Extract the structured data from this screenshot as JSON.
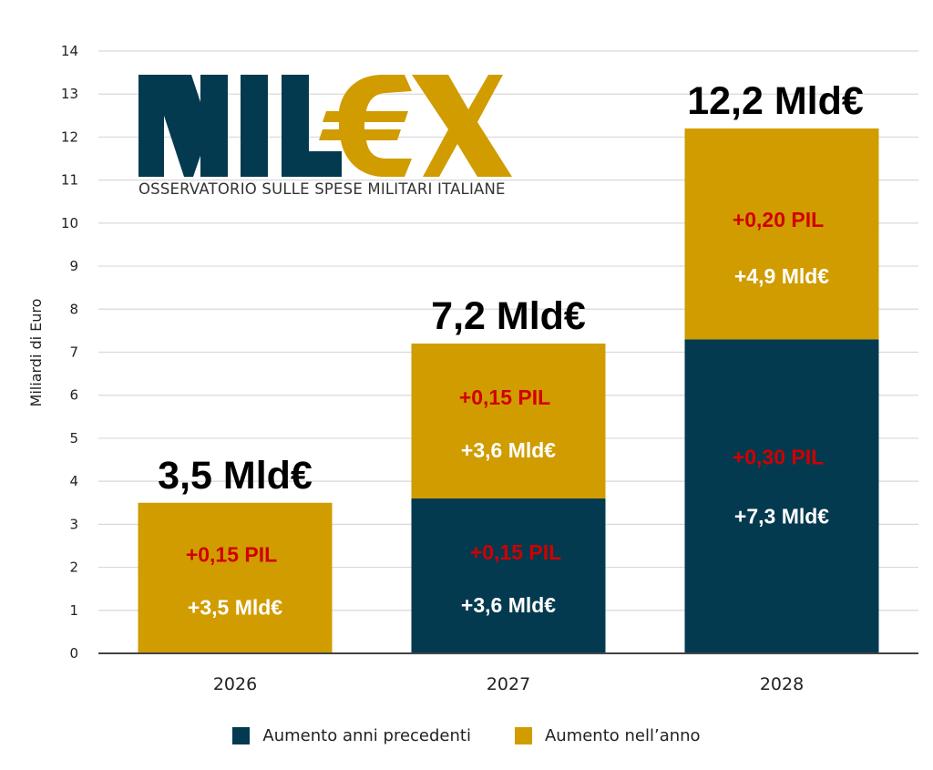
{
  "colors": {
    "previous_years": "#033a4f",
    "current_year": "#d09c00",
    "pil_text": "#d00000",
    "mld_text": "#ffffff",
    "total_text": "#000000"
  },
  "logo": {
    "word_left": "MIL",
    "word_right": "€X",
    "subtitle": "OSSERVATORIO SULLE SPESE MILITARI ITALIANE"
  },
  "chart_data": {
    "type": "bar",
    "stacked": true,
    "title": "",
    "xlabel": "",
    "ylabel": "Miliardi di Euro",
    "ylim": [
      0,
      14
    ],
    "yticks": [
      "0",
      "1",
      "2",
      "3",
      "4",
      "5",
      "6",
      "7",
      "8",
      "9",
      "10",
      "11",
      "12",
      "13",
      "14"
    ],
    "grid": true,
    "legend_position": "bottom",
    "categories": [
      "2026",
      "2027",
      "2028"
    ],
    "series": [
      {
        "name": "Aumento anni precedenti",
        "color": "#033a4f",
        "values": [
          0,
          3.6,
          7.3
        ],
        "labels": [
          null,
          {
            "pil": "+0,15 PIL",
            "mld": "+3,6 Mld€"
          },
          {
            "pil": "+0,30 PIL",
            "mld": "+7,3 Mld€"
          }
        ]
      },
      {
        "name": "Aumento nell’anno",
        "color": "#d09c00",
        "values": [
          3.5,
          3.6,
          4.9
        ],
        "labels": [
          {
            "pil": "+0,15 PIL",
            "mld": "+3,5 Mld€"
          },
          {
            "pil": "+0,15 PIL",
            "mld": "+3,6 Mld€"
          },
          {
            "pil": "+0,20 PIL",
            "mld": "+4,9 Mld€"
          }
        ]
      }
    ],
    "totals": [
      "3,5 Mld€",
      "7,2 Mld€",
      "12,2 Mld€"
    ],
    "total_values": [
      3.5,
      7.2,
      12.2
    ]
  }
}
